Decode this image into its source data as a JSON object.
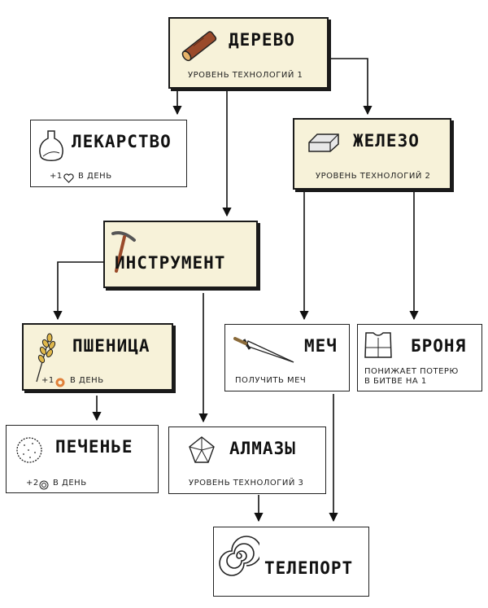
{
  "nodes": {
    "derevo": {
      "title": "ДЕРЕВО",
      "subtitle": "УРОВЕНЬ ТЕХНОЛОГИЙ 1",
      "icon": "log-icon"
    },
    "lekarstvo": {
      "title": "ЛЕКАРСТВО",
      "bonus": "+1",
      "bonus_icon": "heart-icon",
      "per_day": "В ДЕНЬ",
      "icon": "vase-icon"
    },
    "zhelezo": {
      "title": "ЖЕЛЕЗО",
      "subtitle": "УРОВЕНЬ ТЕХНОЛОГИЙ 2",
      "icon": "iron-ingot-icon"
    },
    "instrument": {
      "title": "ИНСТРУМЕНТ",
      "icon": "pickaxe-icon"
    },
    "pshenitsa": {
      "title": "ПШЕНИЦА",
      "bonus": "+1",
      "bonus_icon": "donut-icon",
      "per_day": "В ДЕНЬ",
      "icon": "wheat-icon"
    },
    "mech": {
      "title": "МЕЧ",
      "subtitle": "ПОЛУЧИТЬ МЕЧ",
      "icon": "sword-icon"
    },
    "bronya": {
      "title": "БРОНЯ",
      "desc": [
        "ПОНИЖАЕТ ПОТЕРЮ",
        "В БИТВЕ НА 1"
      ],
      "icon": "armor-icon"
    },
    "pechenye": {
      "title": "ПЕЧЕНЬЕ",
      "bonus": "+2",
      "bonus_icon": "spiral-coin-icon",
      "per_day": "В ДЕНЬ",
      "icon": "cookie-icon"
    },
    "almazy": {
      "title": "АЛМАЗЫ",
      "subtitle": "УРОВЕНЬ ТЕХНОЛОГИЙ 3",
      "icon": "diamond-icon"
    },
    "teleport": {
      "title": "ТЕЛЕПОРТ",
      "icon": "spiral-portal-icon"
    }
  },
  "edges": [
    [
      "derevo",
      "lekarstvo"
    ],
    [
      "derevo",
      "instrument"
    ],
    [
      "derevo",
      "zhelezo"
    ],
    [
      "instrument",
      "pshenitsa"
    ],
    [
      "instrument",
      "almazy"
    ],
    [
      "zhelezo",
      "mech"
    ],
    [
      "zhelezo",
      "bronya"
    ],
    [
      "pshenitsa",
      "pechenye"
    ],
    [
      "almazy",
      "teleport"
    ],
    [
      "mech",
      "teleport"
    ]
  ],
  "colors": {
    "highlight_bg": "#f7f2d9",
    "border": "#1a1a1a",
    "wood": "#9a4a2a",
    "wheat": "#e0b84a",
    "donut": "#e0803a"
  }
}
